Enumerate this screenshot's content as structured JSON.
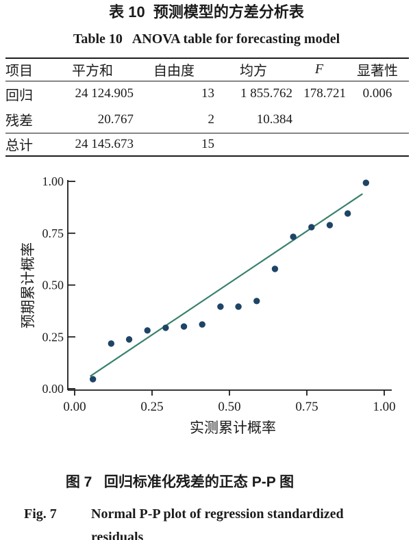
{
  "page": {
    "table_title_zh": "表 10  预测模型的方差分析表",
    "table_title_en": "Table 10   ANOVA table for forecasting model"
  },
  "anova_table": {
    "columns": [
      "项目",
      "平方和",
      "自由度",
      "均方",
      "F",
      "显著性"
    ],
    "rows": [
      [
        "回归",
        "24 124.905",
        "13",
        "1 855.762",
        "178.721",
        "0.006"
      ],
      [
        "残差",
        "20.767",
        "2",
        "10.384",
        "",
        ""
      ],
      [
        "总计",
        "24 145.673",
        "15",
        "",
        "",
        ""
      ]
    ]
  },
  "chart_data": {
    "type": "scatter",
    "title": "Normal P-P plot of regression standardized residuals",
    "xlabel": "实测累计概率",
    "ylabel": "预期累计概率",
    "xlim": [
      0,
      1
    ],
    "ylim": [
      0,
      1
    ],
    "grid": false,
    "legend": "none",
    "xtick_values": [
      0,
      0.25,
      0.5,
      0.75,
      1.0
    ],
    "xtick_labels": [
      "0.00",
      "0.25",
      "0.50",
      "0.75",
      "1.00"
    ],
    "ytick_values": [
      0,
      0.25,
      0.5,
      0.75,
      1.0
    ],
    "ytick_labels": [
      "0.00",
      "0.25",
      "0.50",
      "0.75",
      "1.00"
    ],
    "points": [
      [
        0.059,
        0.046
      ],
      [
        0.118,
        0.218
      ],
      [
        0.176,
        0.238
      ],
      [
        0.235,
        0.281
      ],
      [
        0.294,
        0.294
      ],
      [
        0.353,
        0.3
      ],
      [
        0.412,
        0.31
      ],
      [
        0.471,
        0.396
      ],
      [
        0.529,
        0.396
      ],
      [
        0.588,
        0.423
      ],
      [
        0.647,
        0.578
      ],
      [
        0.706,
        0.733
      ],
      [
        0.765,
        0.779
      ],
      [
        0.824,
        0.789
      ],
      [
        0.882,
        0.845
      ],
      [
        0.941,
        0.993
      ]
    ],
    "fit_line": {
      "x1": 0.05,
      "y1": 0.06,
      "x2": 0.93,
      "y2": 0.94
    },
    "point_color": "#1e4466",
    "line_color": "#38806e",
    "axis_color": "#1c1c1c"
  },
  "figure_caption": {
    "zh": "图 7   回归标准化残差的正态 P-P 图",
    "en_label": "Fig. 7",
    "en_line1": "Normal P-P plot of regression standardized",
    "en_line2": "residuals"
  }
}
